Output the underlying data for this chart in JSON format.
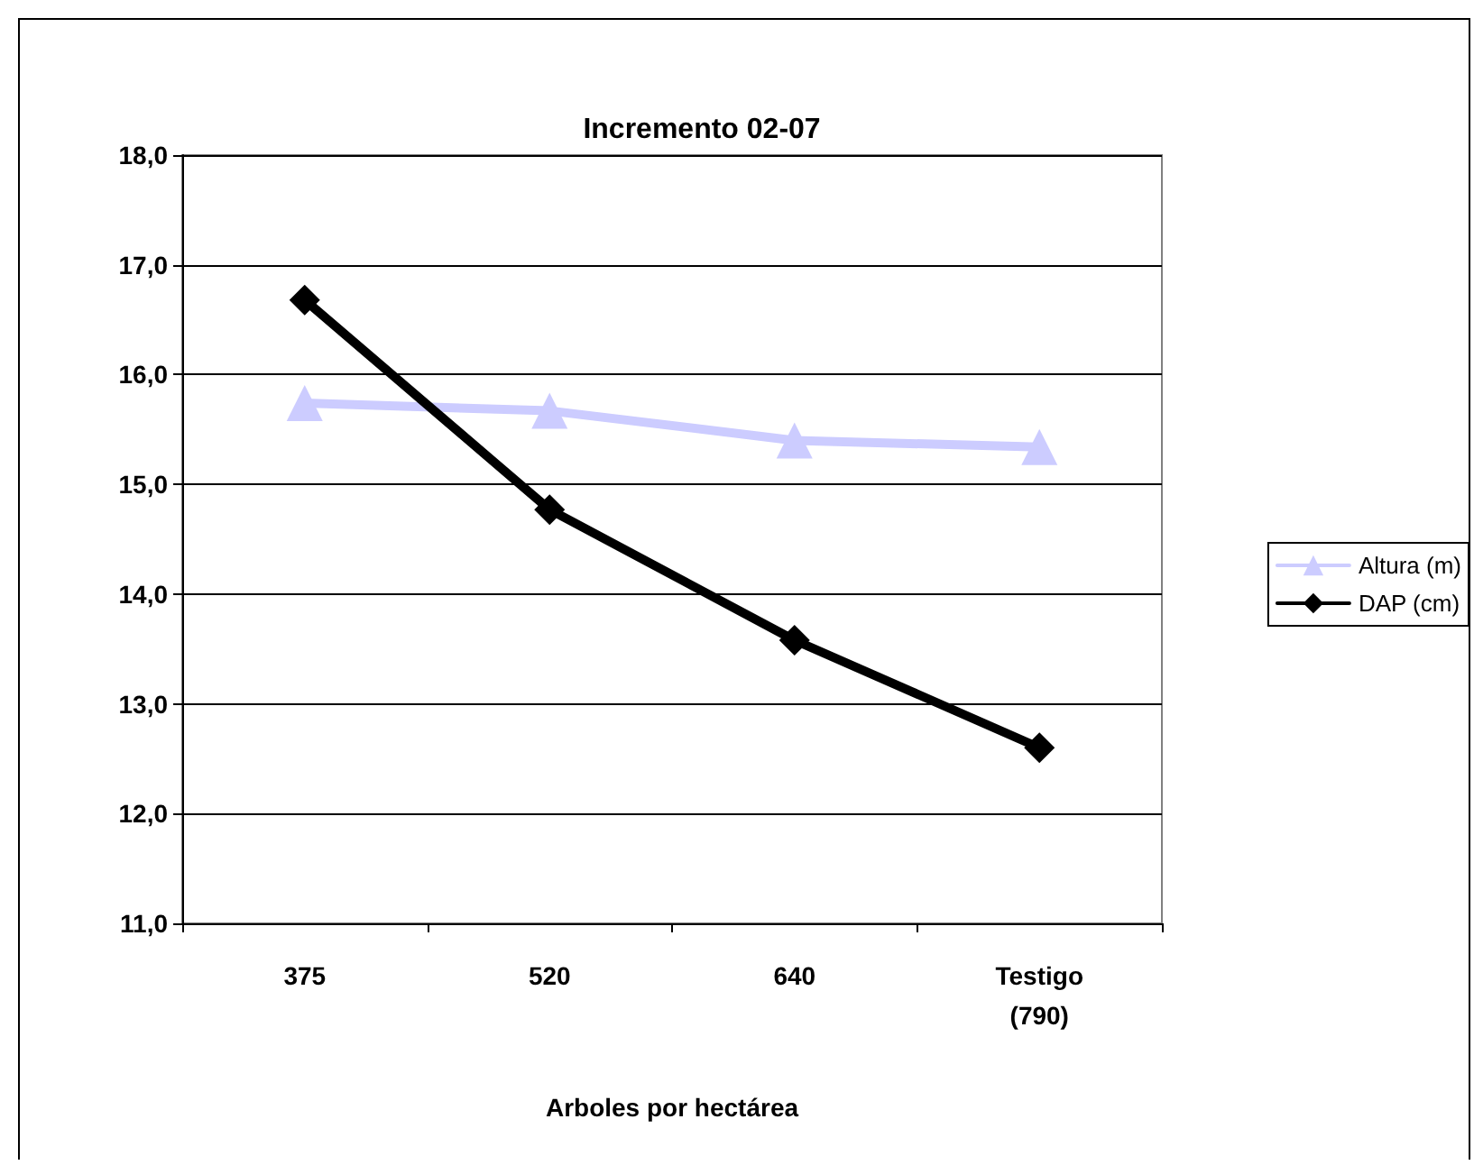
{
  "chart_data": {
    "type": "line",
    "title": "Incremento 02-07",
    "xlabel": "Arboles por hectárea",
    "categories": [
      "375",
      "520",
      "640",
      "Testigo\n(790)"
    ],
    "series": [
      {
        "name": "Altura (m)",
        "color": "#ccccff",
        "marker": "triangle",
        "values": [
          15.74,
          15.67,
          15.4,
          15.34
        ]
      },
      {
        "name": "DAP (cm)",
        "color": "#000000",
        "marker": "diamond",
        "values": [
          16.68,
          14.77,
          13.58,
          12.6
        ]
      }
    ],
    "ylim": [
      11,
      18
    ],
    "yticks": [
      {
        "value": 11,
        "label": "11,0"
      },
      {
        "value": 12,
        "label": "12,0"
      },
      {
        "value": 13,
        "label": "13,0"
      },
      {
        "value": 14,
        "label": "14,0"
      },
      {
        "value": 15,
        "label": "15,0"
      },
      {
        "value": 16,
        "label": "16,0"
      },
      {
        "value": 17,
        "label": "17,0"
      },
      {
        "value": 18,
        "label": "18,0"
      }
    ],
    "grid": "y",
    "legend": "right",
    "line_style": "solid"
  }
}
